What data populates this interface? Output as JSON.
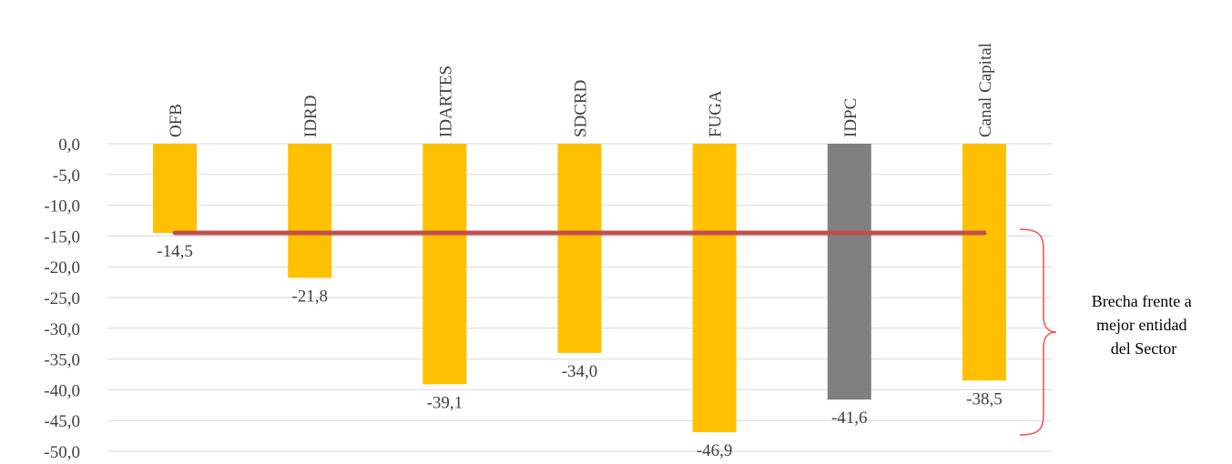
{
  "chart_data": {
    "type": "bar",
    "categories": [
      "OFB",
      "IDRD",
      "IDARTES",
      "SDCRD",
      "FUGA",
      "IDPC",
      "Canal Capital"
    ],
    "values": [
      -14.5,
      -21.8,
      -39.1,
      -34.0,
      -46.9,
      -41.6,
      -38.5
    ],
    "value_labels": [
      "-14,5",
      "-21,8",
      "-39,1",
      "-34,0",
      "-46,9",
      "-41,6",
      "-38,5"
    ],
    "ylim": [
      -50,
      0
    ],
    "yticks": [
      0,
      -5,
      -10,
      -15,
      -20,
      -25,
      -30,
      -35,
      -40,
      -45,
      -50
    ],
    "ytick_labels": [
      "0,0",
      "-5,0",
      "-10,0",
      "-15,0",
      "-20,0",
      "-25,0",
      "-30,0",
      "-35,0",
      "-40,0",
      "-45,0",
      "-50,0"
    ],
    "grid": true,
    "reference_line": {
      "value": -14.5,
      "color": "#c0504d"
    },
    "bar_color": "#ffc000",
    "highlight": {
      "category": "IDPC",
      "color": "#808080"
    },
    "bracket_color": "#ff4b4b",
    "annotation": {
      "lines": [
        "Brecha frente a",
        "mejor entidad",
        "del Sector"
      ]
    }
  }
}
